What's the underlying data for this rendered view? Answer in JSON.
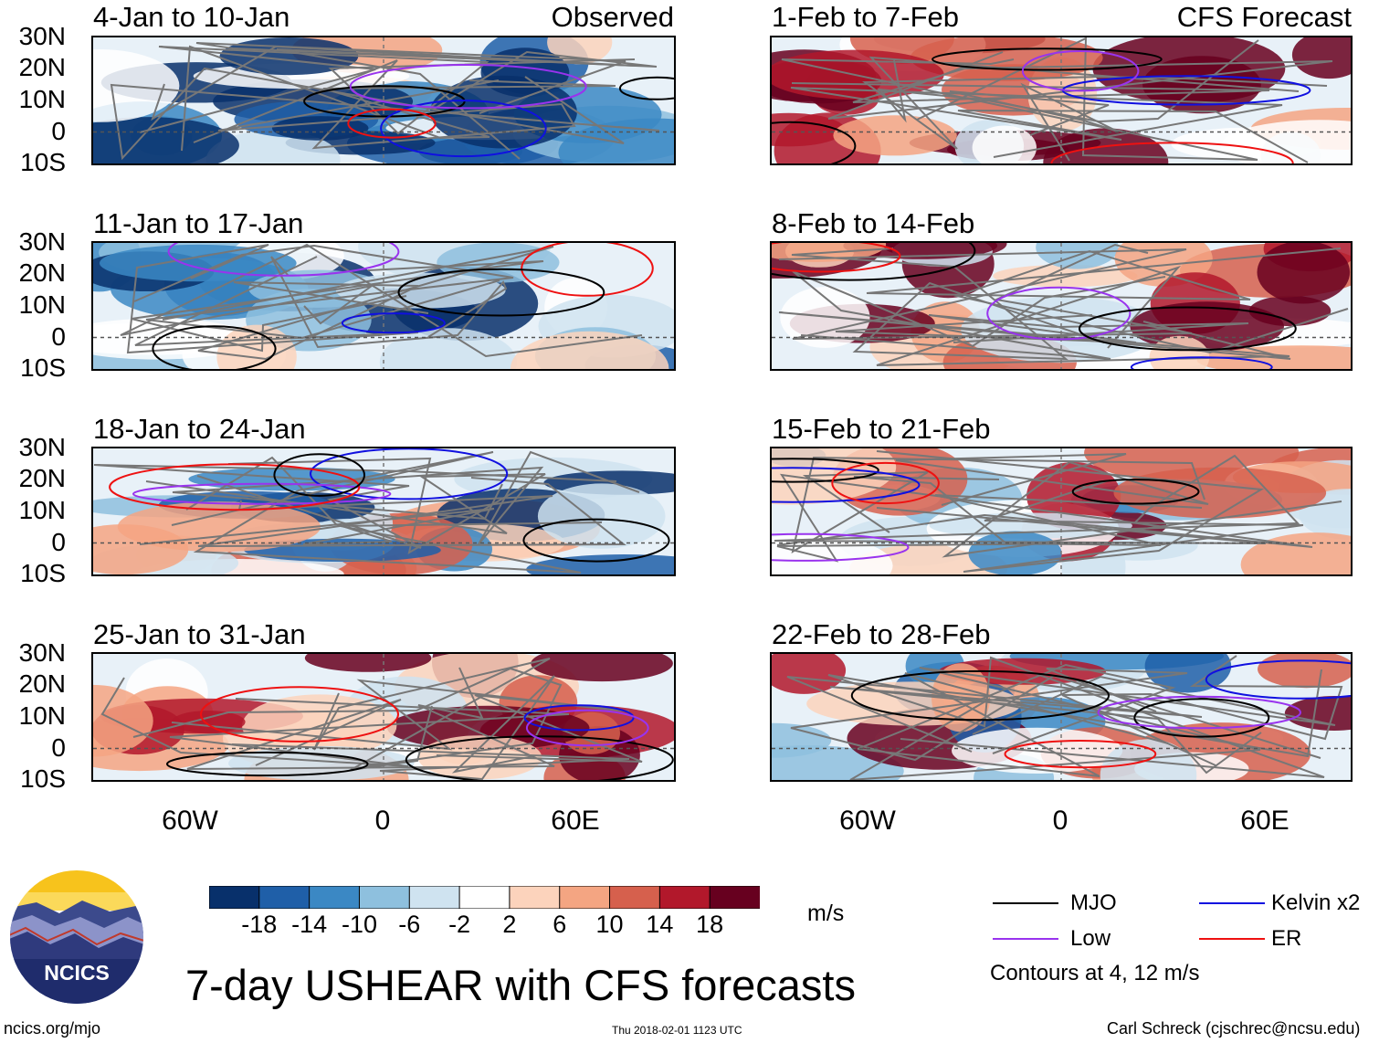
{
  "figure_title": "7-day USHEAR with CFS forecasts",
  "units": "m/s",
  "contour_note": "Contours at 4, 12 m/s",
  "footer": {
    "site": "ncics.org/mjo",
    "timestamp": "Thu 2018-02-01 1123 UTC",
    "author": "Carl Schreck (cjschrec@ncsu.edu)"
  },
  "logo": {
    "text": "NCICS"
  },
  "column_tags": {
    "left": "Observed",
    "right": "CFS Forecast"
  },
  "lat_labels": [
    "30N",
    "20N",
    "10N",
    "0",
    "10S"
  ],
  "lon_labels": [
    "60W",
    "0",
    "60E"
  ],
  "panels_left": [
    {
      "title": "4-Jan to 10-Jan"
    },
    {
      "title": "11-Jan to 17-Jan"
    },
    {
      "title": "18-Jan to 24-Jan"
    },
    {
      "title": "25-Jan to 31-Jan"
    }
  ],
  "panels_right": [
    {
      "title": "1-Feb to 7-Feb"
    },
    {
      "title": "8-Feb to 14-Feb"
    },
    {
      "title": "15-Feb to 21-Feb"
    },
    {
      "title": "22-Feb to 28-Feb"
    }
  ],
  "colorbar": {
    "tick_labels": [
      "-18",
      "-14",
      "-10",
      "-6",
      "-2",
      "2",
      "6",
      "10",
      "14",
      "18"
    ],
    "colors": [
      "#08306b",
      "#1f5fa8",
      "#3b88c4",
      "#8ec0de",
      "#cfe3f0",
      "#ffffff",
      "#fcd3bc",
      "#f4a582",
      "#d6604d",
      "#b2182b",
      "#67001f"
    ]
  },
  "legend": [
    {
      "label": "MJO",
      "color": "#000000"
    },
    {
      "label": "Kelvin x2",
      "color": "#1010e0"
    },
    {
      "label": "Low",
      "color": "#9933ee"
    },
    {
      "label": "ER",
      "color": "#ee1111"
    }
  ]
}
